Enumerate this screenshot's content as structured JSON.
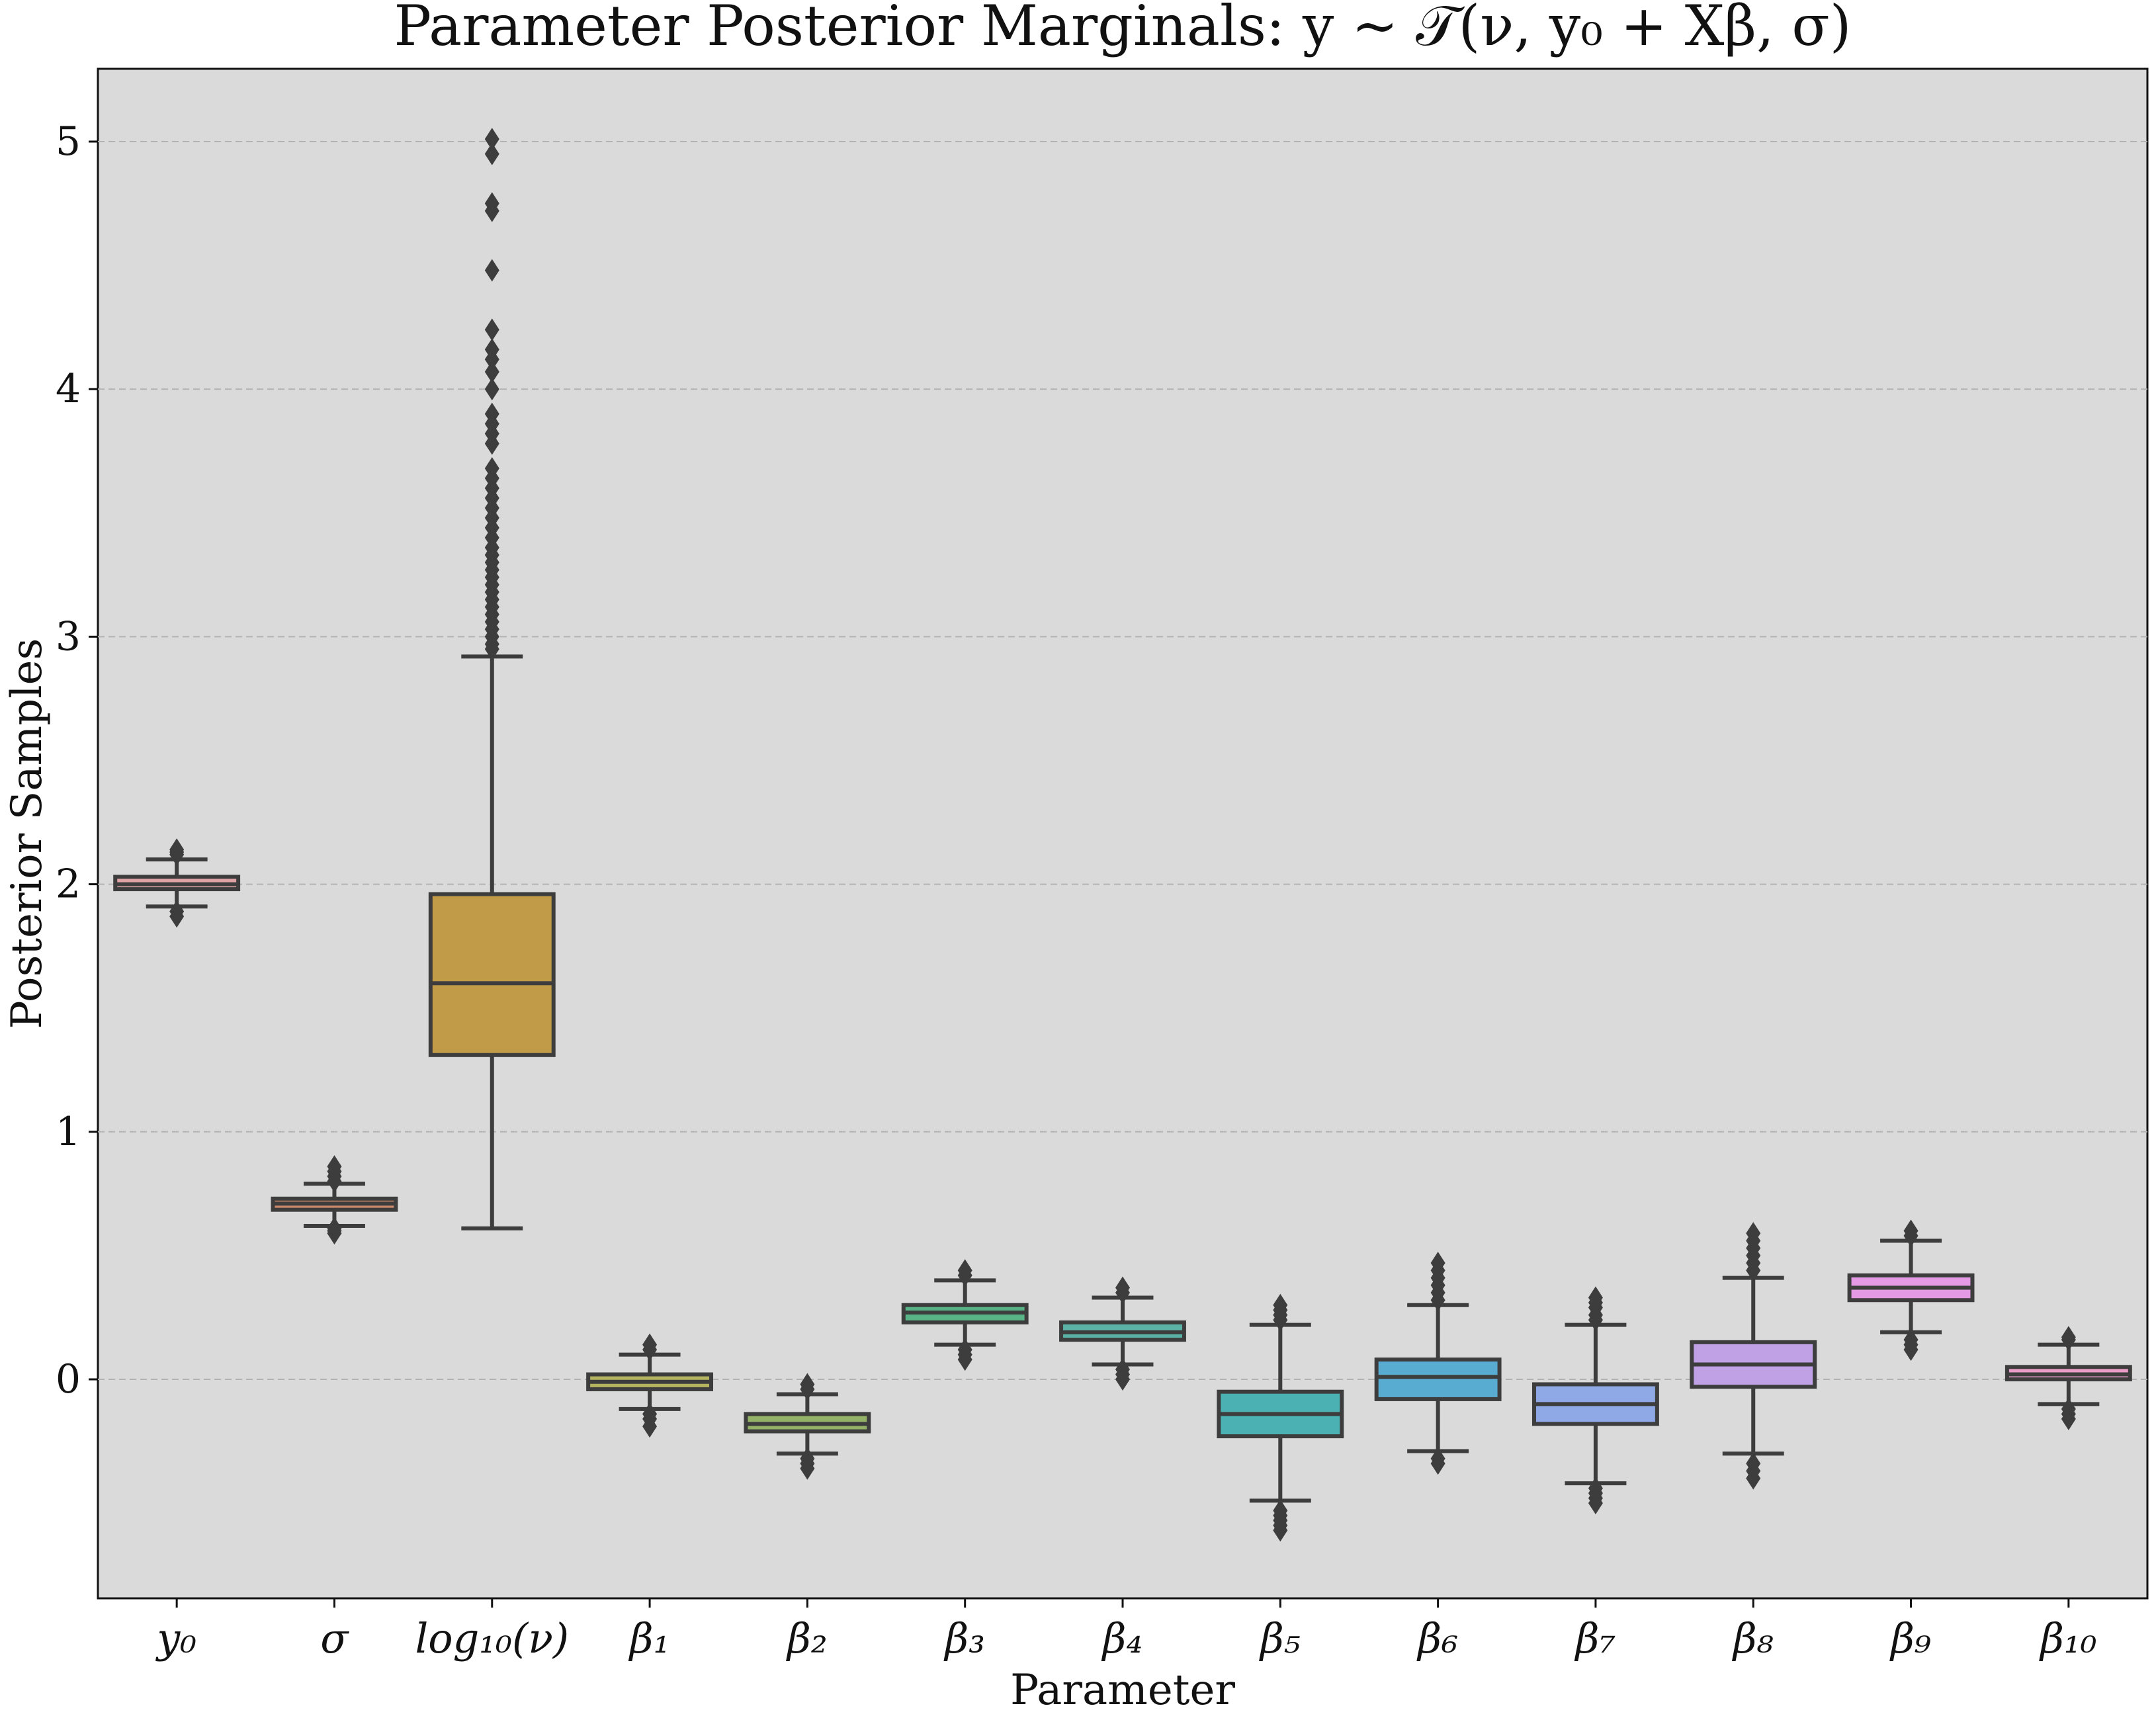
{
  "chart_data": {
    "type": "box",
    "title": "Parameter Posterior Marginals: y ~ 𝒯(ν, y₀ + Xβ, σ)",
    "xlabel": "Parameter",
    "ylabel": "Posterior Samples",
    "ylim": [
      -0.88,
      5.3
    ],
    "yticks": [
      "0",
      "1",
      "2",
      "3",
      "4",
      "5"
    ],
    "grid": "horizontal dashed",
    "background": "#dadada",
    "box_edge_color": "#3d3d3d",
    "categories": [
      "y₀",
      "σ",
      "log₁₀(ν)",
      "β₁",
      "β₂",
      "β₃",
      "β₄",
      "β₅",
      "β₆",
      "β₇",
      "β₈",
      "β₉",
      "β₁₀"
    ],
    "boxes": [
      {
        "name": "y₀",
        "color": "#e1a4a6",
        "q1": 1.98,
        "median": 2.0,
        "q3": 2.03,
        "whisker_low": 1.91,
        "whisker_high": 2.1,
        "outliers": [
          1.87,
          1.89,
          2.12,
          2.13,
          2.14
        ]
      },
      {
        "name": "σ",
        "color": "#c9876a",
        "q1": 0.685,
        "median": 0.71,
        "q3": 0.73,
        "whisker_low": 0.62,
        "whisker_high": 0.79,
        "outliers": [
          0.59,
          0.6,
          0.61,
          0.8,
          0.82,
          0.84,
          0.86
        ]
      },
      {
        "name": "log₁₀(ν)",
        "color": "#c29b48",
        "q1": 1.31,
        "median": 1.6,
        "q3": 1.96,
        "whisker_low": 0.61,
        "whisker_high": 2.92,
        "outliers": [
          2.95,
          2.97,
          3.0,
          3.03,
          3.06,
          3.09,
          3.12,
          3.15,
          3.18,
          3.21,
          3.24,
          3.27,
          3.3,
          3.33,
          3.36,
          3.4,
          3.44,
          3.48,
          3.52,
          3.56,
          3.6,
          3.64,
          3.68,
          3.78,
          3.82,
          3.86,
          3.9,
          4.0,
          4.07,
          4.12,
          4.16,
          4.24,
          4.48,
          4.72,
          4.75,
          4.95,
          5.01
        ]
      },
      {
        "name": "β₁",
        "color": "#b4b35f",
        "q1": -0.04,
        "median": -0.01,
        "q3": 0.02,
        "whisker_low": -0.12,
        "whisker_high": 0.1,
        "outliers": [
          -0.19,
          -0.16,
          -0.14,
          0.12,
          0.14
        ]
      },
      {
        "name": "β₂",
        "color": "#93b167",
        "q1": -0.21,
        "median": -0.18,
        "q3": -0.14,
        "whisker_low": -0.3,
        "whisker_high": -0.06,
        "outliers": [
          -0.36,
          -0.34,
          -0.32,
          -0.04,
          -0.02
        ]
      },
      {
        "name": "β₃",
        "color": "#58b386",
        "q1": 0.23,
        "median": 0.27,
        "q3": 0.3,
        "whisker_low": 0.14,
        "whisker_high": 0.4,
        "outliers": [
          0.08,
          0.1,
          0.12,
          0.42,
          0.44
        ]
      },
      {
        "name": "β₄",
        "color": "#5bb3a7",
        "q1": 0.16,
        "median": 0.19,
        "q3": 0.23,
        "whisker_low": 0.06,
        "whisker_high": 0.33,
        "outliers": [
          0.0,
          0.02,
          0.04,
          0.35,
          0.37
        ]
      },
      {
        "name": "β₅",
        "color": "#4cb1b3",
        "q1": -0.23,
        "median": -0.14,
        "q3": -0.05,
        "whisker_low": -0.49,
        "whisker_high": 0.22,
        "outliers": [
          -0.61,
          -0.59,
          -0.57,
          -0.55,
          -0.53,
          0.24,
          0.26,
          0.28,
          0.3
        ]
      },
      {
        "name": "β₆",
        "color": "#58acd1",
        "q1": -0.08,
        "median": 0.01,
        "q3": 0.08,
        "whisker_low": -0.29,
        "whisker_high": 0.3,
        "outliers": [
          -0.34,
          -0.32,
          0.32,
          0.35,
          0.38,
          0.41,
          0.44,
          0.47
        ]
      },
      {
        "name": "β₇",
        "color": "#8fa9e6",
        "q1": -0.18,
        "median": -0.1,
        "q3": -0.02,
        "whisker_low": -0.42,
        "whisker_high": 0.22,
        "outliers": [
          -0.5,
          -0.48,
          -0.46,
          -0.44,
          0.24,
          0.26,
          0.29,
          0.31,
          0.33
        ]
      },
      {
        "name": "β₈",
        "color": "#c0a1e6",
        "q1": -0.03,
        "median": 0.06,
        "q3": 0.15,
        "whisker_low": -0.3,
        "whisker_high": 0.41,
        "outliers": [
          -0.4,
          -0.37,
          -0.34,
          0.44,
          0.47,
          0.5,
          0.53,
          0.56,
          0.59
        ]
      },
      {
        "name": "β₉",
        "color": "#e49ae4",
        "q1": 0.32,
        "median": 0.37,
        "q3": 0.42,
        "whisker_low": 0.19,
        "whisker_high": 0.56,
        "outliers": [
          0.12,
          0.14,
          0.16,
          0.58,
          0.6
        ]
      },
      {
        "name": "β₁₀",
        "color": "#e89cc6",
        "q1": 0.0,
        "median": 0.02,
        "q3": 0.05,
        "whisker_low": -0.1,
        "whisker_high": 0.14,
        "outliers": [
          -0.16,
          -0.14,
          -0.12,
          0.16,
          0.17
        ]
      }
    ]
  }
}
